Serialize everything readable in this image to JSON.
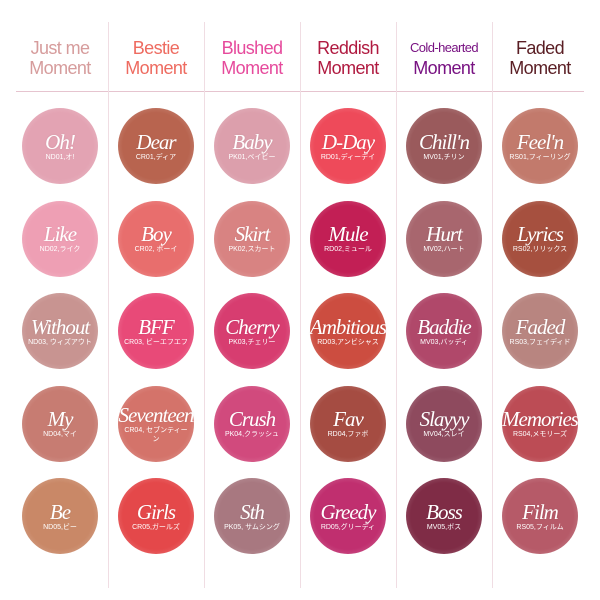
{
  "columns": [
    {
      "line1": "Just me",
      "line2": "Moment",
      "color": "#d69c9c"
    },
    {
      "line1": "Bestie",
      "line2": "Moment",
      "color": "#ee6b60"
    },
    {
      "line1": "Blushed",
      "line2": "Moment",
      "color": "#e64a9c"
    },
    {
      "line1": "Reddish",
      "line2": "Moment",
      "color": "#b01a40"
    },
    {
      "line1": "Cold-hearted",
      "line2": "Moment",
      "color": "#781282"
    },
    {
      "line1": "Faded",
      "line2": "Moment",
      "color": "#5a1e24"
    }
  ],
  "swatches": [
    [
      {
        "name": "Oh!",
        "code": "ND01,オ!",
        "color": "#e3a3b3"
      },
      {
        "name": "Dear",
        "code": "CR01,ディア",
        "color": "#b8644f"
      },
      {
        "name": "Baby",
        "code": "PK01,ベイビー",
        "color": "#dc9fac"
      },
      {
        "name": "D-Day",
        "code": "RD01,ディーデイ",
        "color": "#ee4a5a"
      },
      {
        "name": "Chill'n",
        "code": "MV01,チリン",
        "color": "#9a5a5c"
      },
      {
        "name": "Feel'n",
        "code": "RS01,フィーリング",
        "color": "#c27a6c"
      }
    ],
    [
      {
        "name": "Like",
        "code": "ND02,ライク",
        "color": "#ee9fb4"
      },
      {
        "name": "Boy",
        "code": "CR02, ボーイ",
        "color": "#e86e6d"
      },
      {
        "name": "Skirt",
        "code": "PK02,スカート",
        "color": "#d88382"
      },
      {
        "name": "Mule",
        "code": "RD02,ミュール",
        "color": "#c21f55"
      },
      {
        "name": "Hurt",
        "code": "MV02,ハート",
        "color": "#a8666e"
      },
      {
        "name": "Lyrics",
        "code": "RS02,リリックス",
        "color": "#a6503f"
      }
    ],
    [
      {
        "name": "Without",
        "code": "ND03, ウィズアウト",
        "color": "#c89491"
      },
      {
        "name": "BFF",
        "code": "CR03, ビーエフエフ",
        "color": "#e84a78"
      },
      {
        "name": "Cherry",
        "code": "PK03,チェリー",
        "color": "#d73d70"
      },
      {
        "name": "Ambitious",
        "code": "RD03,アンビシャス",
        "color": "#cc4d40"
      },
      {
        "name": "Baddie",
        "code": "MV03,バッディ",
        "color": "#b0486a"
      },
      {
        "name": "Faded",
        "code": "RS03,フェイディド",
        "color": "#b88580"
      }
    ],
    [
      {
        "name": "My",
        "code": "ND04,マイ",
        "color": "#c77c72"
      },
      {
        "name": "Seventeen",
        "code": "CR04, セブンティーン",
        "color": "#d4736a"
      },
      {
        "name": "Crush",
        "code": "PK04,クラッシュ",
        "color": "#d14a7d"
      },
      {
        "name": "Fav",
        "code": "RD04,ファボ",
        "color": "#a54c42"
      },
      {
        "name": "Slayyy",
        "code": "MV04,スレイ",
        "color": "#8e4a5e"
      },
      {
        "name": "Memories",
        "code": "RS04,メモリーズ",
        "color": "#bc4c55"
      }
    ],
    [
      {
        "name": "Be",
        "code": "ND05,ビー",
        "color": "#c98867"
      },
      {
        "name": "Girls",
        "code": "CR05,ガールズ",
        "color": "#e4484a"
      },
      {
        "name": "Sth",
        "code": "PK05, サムシング",
        "color": "#a87880"
      },
      {
        "name": "Greedy",
        "code": "RD05,グリーディ",
        "color": "#c02f6f"
      },
      {
        "name": "Boss",
        "code": "MV05,ボス",
        "color": "#7f2c46"
      },
      {
        "name": "Film",
        "code": "RS05,フィルム",
        "color": "#b65a68"
      }
    ]
  ]
}
